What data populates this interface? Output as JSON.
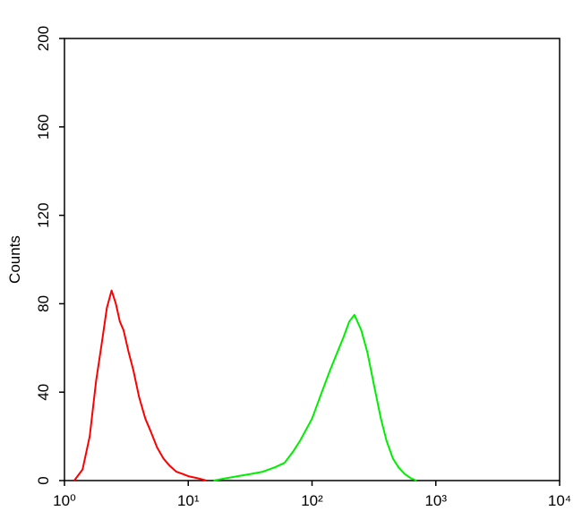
{
  "chart_data": {
    "type": "line",
    "y_label": "Counts",
    "log_x": true,
    "xlim": [
      1,
      10000
    ],
    "xticks": [
      {
        "value": 1,
        "label": "10⁰"
      },
      {
        "value": 10,
        "label": "10¹"
      },
      {
        "value": 100,
        "label": "10²"
      },
      {
        "value": 1000,
        "label": "10³"
      },
      {
        "value": 10000,
        "label": "10⁴"
      }
    ],
    "ylim": [
      0,
      200
    ],
    "yticks": [
      0,
      40,
      80,
      120,
      160,
      200
    ],
    "series": [
      {
        "color": "#ff0000",
        "x": [
          1.2,
          1.4,
          1.6,
          1.8,
          2.0,
          2.2,
          2.4,
          2.6,
          2.8,
          3.0,
          3.3,
          3.6,
          4.0,
          4.5,
          5.0,
          5.6,
          6.3,
          7.0,
          8.0,
          9.0,
          10,
          12,
          14
        ],
        "values": [
          0,
          5,
          20,
          45,
          62,
          78,
          86,
          80,
          72,
          68,
          58,
          50,
          38,
          28,
          22,
          15,
          10,
          7,
          4,
          3,
          2,
          1,
          0
        ]
      },
      {
        "color": "#00ee00",
        "x": [
          16,
          20,
          25,
          32,
          40,
          50,
          60,
          70,
          80,
          100,
          120,
          140,
          160,
          180,
          200,
          220,
          250,
          280,
          320,
          360,
          400,
          450,
          500,
          560,
          630,
          700
        ],
        "values": [
          0,
          1,
          2,
          3,
          4,
          6,
          8,
          13,
          18,
          28,
          40,
          50,
          58,
          65,
          72,
          75,
          68,
          58,
          42,
          28,
          18,
          10,
          6,
          3,
          1,
          0
        ]
      }
    ]
  }
}
